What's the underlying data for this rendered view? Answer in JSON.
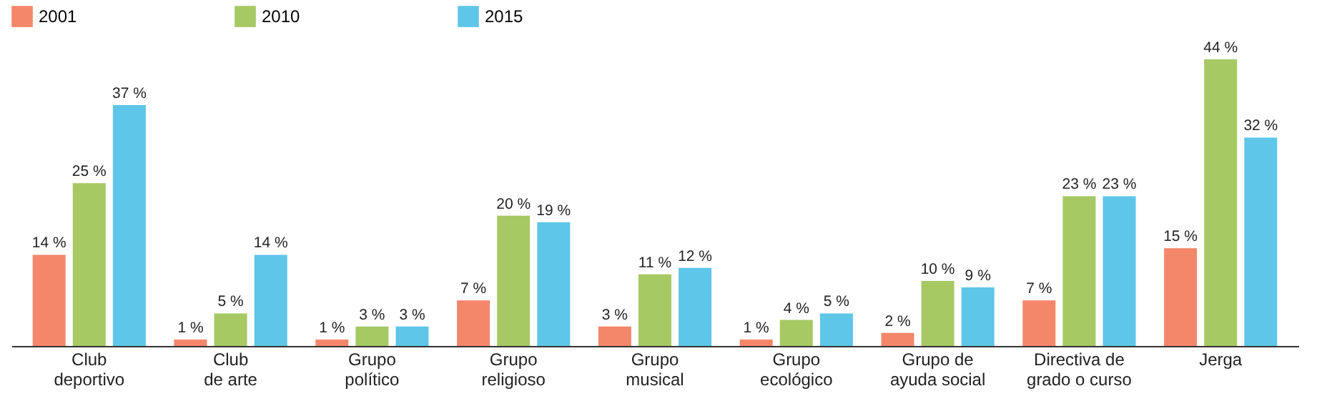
{
  "chart_data": {
    "type": "bar",
    "categories": [
      "Club\ndeportivo",
      "Club\nde arte",
      "Grupo\npolítico",
      "Grupo\nreligioso",
      "Grupo\nmusical",
      "Grupo\necológico",
      "Grupo de\nayuda social",
      "Directiva de\ngrado o curso",
      "Jerga"
    ],
    "series": [
      {
        "name": "2001",
        "color": "#f4876a",
        "values": [
          14,
          1,
          1,
          7,
          3,
          1,
          2,
          7,
          15
        ],
        "value_labels": [
          "14 %",
          "1 %",
          "1 %",
          "7 %",
          "3 %",
          "1 %",
          "2 %",
          "7 %",
          "15 %"
        ]
      },
      {
        "name": "2010",
        "color": "#a6c964",
        "values": [
          25,
          5,
          3,
          20,
          11,
          4,
          10,
          23,
          44
        ],
        "value_labels": [
          "25 %",
          "5 %",
          "3 %",
          "20 %",
          "11 %",
          "4 %",
          "10 %",
          "23 %",
          "44 %"
        ]
      },
      {
        "name": "2015",
        "color": "#5ec6e8",
        "values": [
          37,
          14,
          3,
          19,
          12,
          5,
          9,
          23,
          32
        ],
        "value_labels": [
          "37 %",
          "14 %",
          "3 %",
          "19 %",
          "12 %",
          "5 %",
          "9 %",
          "23 %",
          "32 %"
        ]
      }
    ],
    "legend": "top",
    "grid": false,
    "tick_labels": "x"
  }
}
